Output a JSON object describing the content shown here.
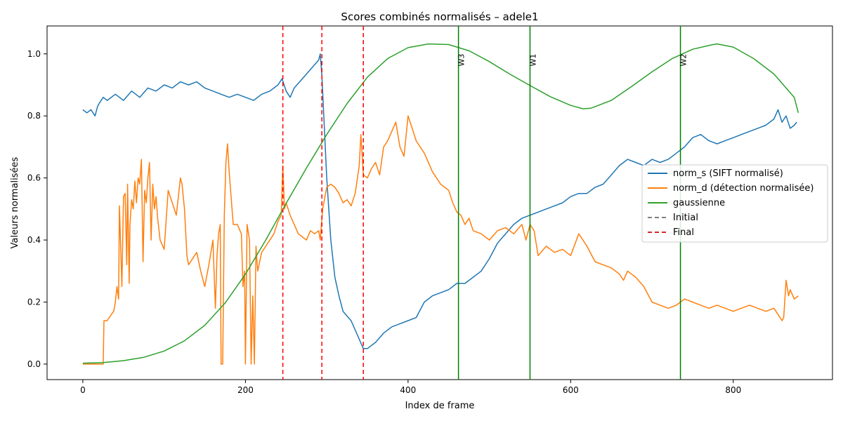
{
  "chart_data": {
    "type": "line",
    "title": "Scores combinés normalisés – adele1",
    "xlabel": "Index de frame",
    "ylabel": "Valeurs normalisées",
    "xlim": [
      -44,
      922
    ],
    "ylim": [
      -0.05,
      1.09
    ],
    "xticks": [
      0,
      200,
      400,
      600,
      800
    ],
    "yticks": [
      0.0,
      0.2,
      0.4,
      0.6,
      0.8,
      1.0
    ],
    "grid": false,
    "legend_position": "center-right",
    "series": [
      {
        "name": "norm_s (SIFT normalisé)",
        "color": "#1f77b4",
        "x": [
          0,
          5,
          10,
          15,
          18,
          20,
          25,
          30,
          40,
          50,
          60,
          70,
          80,
          90,
          100,
          110,
          120,
          130,
          140,
          150,
          160,
          170,
          180,
          190,
          200,
          210,
          220,
          230,
          240,
          245,
          250,
          255,
          260,
          270,
          280,
          290,
          292,
          294,
          300,
          305,
          310,
          315,
          320,
          330,
          340,
          345,
          350,
          360,
          370,
          380,
          390,
          400,
          410,
          420,
          430,
          440,
          450,
          460,
          470,
          480,
          490,
          500,
          510,
          520,
          530,
          540,
          550,
          560,
          570,
          580,
          590,
          600,
          610,
          620,
          630,
          640,
          650,
          660,
          670,
          680,
          690,
          700,
          710,
          720,
          730,
          740,
          750,
          760,
          770,
          780,
          790,
          800,
          810,
          820,
          830,
          840,
          850,
          855,
          860,
          865,
          870,
          875,
          878
        ],
        "y": [
          0.82,
          0.81,
          0.82,
          0.8,
          0.83,
          0.84,
          0.86,
          0.85,
          0.87,
          0.85,
          0.88,
          0.86,
          0.89,
          0.88,
          0.9,
          0.89,
          0.91,
          0.9,
          0.91,
          0.89,
          0.88,
          0.87,
          0.86,
          0.87,
          0.86,
          0.85,
          0.87,
          0.88,
          0.9,
          0.92,
          0.88,
          0.86,
          0.89,
          0.92,
          0.95,
          0.98,
          1.0,
          0.93,
          0.6,
          0.4,
          0.28,
          0.22,
          0.17,
          0.14,
          0.08,
          0.05,
          0.05,
          0.07,
          0.1,
          0.12,
          0.13,
          0.14,
          0.15,
          0.2,
          0.22,
          0.23,
          0.24,
          0.26,
          0.26,
          0.28,
          0.3,
          0.34,
          0.39,
          0.42,
          0.45,
          0.47,
          0.48,
          0.49,
          0.5,
          0.51,
          0.52,
          0.54,
          0.55,
          0.55,
          0.57,
          0.58,
          0.61,
          0.64,
          0.66,
          0.65,
          0.64,
          0.66,
          0.65,
          0.66,
          0.68,
          0.7,
          0.73,
          0.74,
          0.72,
          0.71,
          0.72,
          0.73,
          0.74,
          0.75,
          0.76,
          0.77,
          0.79,
          0.82,
          0.78,
          0.8,
          0.76,
          0.77,
          0.78
        ]
      },
      {
        "name": "norm_d (détection normalisée)",
        "color": "#ff7f0e",
        "x": [
          0,
          10,
          20,
          25,
          26,
          30,
          35,
          38,
          40,
          42,
          44,
          45,
          48,
          50,
          52,
          54,
          55,
          57,
          58,
          60,
          62,
          64,
          66,
          68,
          70,
          72,
          74,
          76,
          78,
          80,
          82,
          84,
          86,
          88,
          90,
          92,
          95,
          100,
          105,
          110,
          115,
          120,
          122,
          125,
          128,
          130,
          135,
          140,
          145,
          150,
          155,
          160,
          163,
          165,
          167,
          169,
          170,
          172,
          174,
          176,
          178,
          180,
          185,
          190,
          195,
          197,
          199,
          200,
          202,
          205,
          207,
          209,
          211,
          213,
          215,
          220,
          225,
          230,
          235,
          240,
          244,
          246,
          248,
          250,
          255,
          260,
          265,
          270,
          275,
          280,
          285,
          290,
          292,
          295,
          300,
          305,
          310,
          315,
          320,
          325,
          330,
          335,
          340,
          342,
          345,
          350,
          355,
          360,
          365,
          370,
          375,
          380,
          385,
          390,
          395,
          400,
          405,
          410,
          420,
          430,
          440,
          450,
          455,
          460,
          465,
          470,
          475,
          480,
          490,
          500,
          510,
          520,
          530,
          540,
          545,
          550,
          555,
          560,
          570,
          580,
          590,
          600,
          610,
          620,
          630,
          640,
          650,
          660,
          665,
          670,
          680,
          690,
          700,
          710,
          720,
          730,
          740,
          750,
          760,
          770,
          780,
          790,
          800,
          810,
          820,
          830,
          840,
          850,
          855,
          860,
          862,
          865,
          868,
          870,
          875,
          880
        ],
        "y": [
          0.0,
          0.0,
          0.0,
          0.0,
          0.14,
          0.14,
          0.16,
          0.17,
          0.2,
          0.25,
          0.21,
          0.51,
          0.25,
          0.54,
          0.55,
          0.32,
          0.58,
          0.26,
          0.45,
          0.53,
          0.5,
          0.59,
          0.52,
          0.6,
          0.58,
          0.66,
          0.33,
          0.56,
          0.52,
          0.6,
          0.65,
          0.4,
          0.58,
          0.5,
          0.54,
          0.47,
          0.4,
          0.37,
          0.56,
          0.52,
          0.48,
          0.6,
          0.58,
          0.5,
          0.35,
          0.32,
          0.34,
          0.36,
          0.3,
          0.25,
          0.32,
          0.4,
          0.18,
          0.35,
          0.42,
          0.45,
          0.0,
          0.0,
          0.48,
          0.65,
          0.71,
          0.62,
          0.45,
          0.45,
          0.42,
          0.25,
          0.3,
          0.0,
          0.45,
          0.4,
          0.0,
          0.22,
          0.0,
          0.38,
          0.3,
          0.36,
          0.38,
          0.4,
          0.42,
          0.46,
          0.48,
          0.64,
          0.5,
          0.52,
          0.48,
          0.45,
          0.42,
          0.41,
          0.4,
          0.43,
          0.42,
          0.43,
          0.4,
          0.5,
          0.57,
          0.58,
          0.57,
          0.55,
          0.52,
          0.53,
          0.51,
          0.55,
          0.64,
          0.74,
          0.61,
          0.6,
          0.63,
          0.65,
          0.61,
          0.7,
          0.72,
          0.75,
          0.78,
          0.7,
          0.67,
          0.8,
          0.76,
          0.72,
          0.68,
          0.62,
          0.58,
          0.56,
          0.52,
          0.49,
          0.48,
          0.45,
          0.47,
          0.43,
          0.42,
          0.4,
          0.43,
          0.44,
          0.42,
          0.45,
          0.4,
          0.45,
          0.43,
          0.35,
          0.38,
          0.36,
          0.37,
          0.35,
          0.42,
          0.38,
          0.33,
          0.32,
          0.31,
          0.29,
          0.27,
          0.3,
          0.28,
          0.25,
          0.2,
          0.19,
          0.18,
          0.19,
          0.21,
          0.2,
          0.19,
          0.18,
          0.19,
          0.18,
          0.17,
          0.18,
          0.19,
          0.18,
          0.17,
          0.18,
          0.16,
          0.14,
          0.15,
          0.27,
          0.22,
          0.24,
          0.21,
          0.22
        ]
      },
      {
        "name": "gaussienne",
        "color": "#2ca02c",
        "x": [
          0,
          25,
          50,
          75,
          100,
          125,
          150,
          175,
          200,
          225,
          250,
          275,
          300,
          325,
          350,
          375,
          400,
          425,
          450,
          475,
          500,
          525,
          550,
          575,
          600,
          615,
          625,
          650,
          675,
          700,
          725,
          750,
          775,
          780,
          800,
          825,
          850,
          875,
          880
        ],
        "y": [
          0.003,
          0.005,
          0.011,
          0.022,
          0.042,
          0.075,
          0.125,
          0.197,
          0.29,
          0.4,
          0.518,
          0.632,
          0.74,
          0.84,
          0.925,
          0.985,
          1.02,
          1.032,
          1.03,
          1.01,
          0.975,
          0.935,
          0.898,
          0.862,
          0.834,
          0.823,
          0.825,
          0.85,
          0.895,
          0.942,
          0.985,
          1.015,
          1.03,
          1.032,
          1.022,
          0.985,
          0.935,
          0.86,
          0.81
        ]
      }
    ],
    "legend_extra": [
      {
        "name": "Initial",
        "color": "#808080",
        "style": "dashed"
      },
      {
        "name": "Final",
        "color": "#d62728",
        "style": "dashed"
      }
    ],
    "final_lines": [
      246,
      294,
      345
    ],
    "vertical_markers": [
      {
        "x": 462,
        "label": "W3"
      },
      {
        "x": 550,
        "label": "W1"
      },
      {
        "x": 735,
        "label": "W2"
      }
    ],
    "marker_line_color": "#008000",
    "final_line_color": "#ff0000"
  }
}
